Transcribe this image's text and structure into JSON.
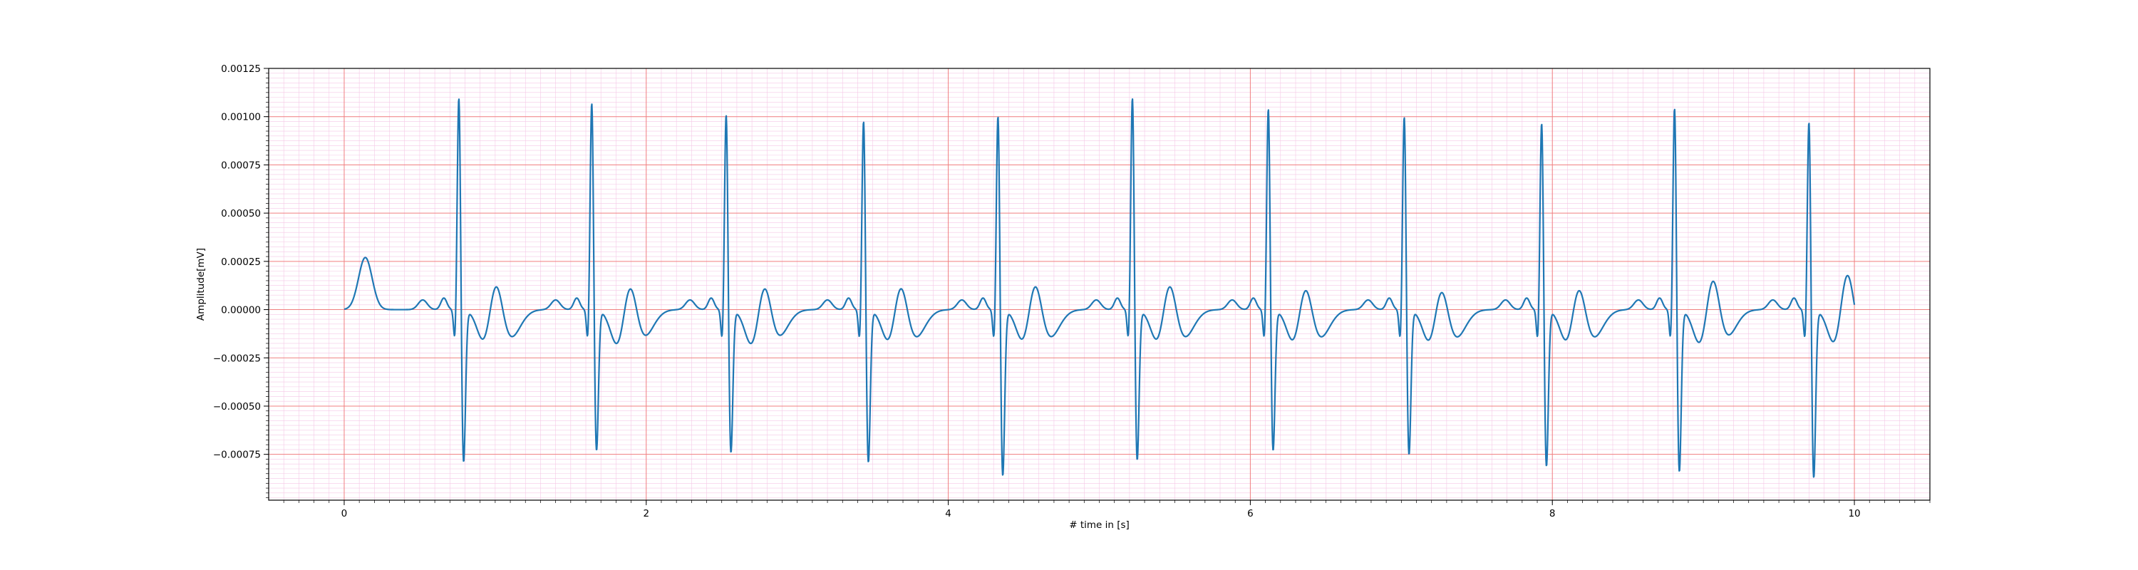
{
  "chart_data": {
    "type": "line",
    "title": "",
    "xlabel": "# time in [s]",
    "ylabel": "Amplitude[mV]",
    "xlim": [
      -0.5,
      10.5
    ],
    "ylim": [
      -0.0009875,
      0.00125
    ],
    "x_ticks": [
      0,
      2,
      4,
      6,
      8,
      10
    ],
    "x_tick_labels": [
      "0",
      "2",
      "4",
      "6",
      "8",
      "10"
    ],
    "y_ticks": [
      0.00125,
      0.001,
      0.00075,
      0.0005,
      0.00025,
      0,
      -0.00025,
      -0.0005,
      -0.00075
    ],
    "y_tick_labels": [
      "0.00125",
      "0.00100",
      "0.00075",
      "0.00050",
      "0.00025",
      "0.00000",
      "−0.00025",
      "−0.00050",
      "−0.00075"
    ],
    "grid": true,
    "colors": {
      "line": "#1f77b4",
      "major_grid": "#f08080",
      "minor_grid": "#f5c8e6",
      "axis": "#000000"
    },
    "series": [
      {
        "beats": [
          {
            "r_time": 0.76,
            "r_peak": 0.00115,
            "s_trough": -0.00081
          },
          {
            "r_time": 1.64,
            "r_peak": 0.00112,
            "s_trough": -0.00075
          },
          {
            "r_time": 2.53,
            "r_peak": 0.00106,
            "s_trough": -0.00076
          },
          {
            "r_time": 3.44,
            "r_peak": 0.00103,
            "s_trough": -0.00081
          },
          {
            "r_time": 4.33,
            "r_peak": 0.00106,
            "s_trough": -0.00088
          },
          {
            "r_time": 5.22,
            "r_peak": 0.00115,
            "s_trough": -0.0008
          },
          {
            "r_time": 6.12,
            "r_peak": 0.00109,
            "s_trough": -0.00075
          },
          {
            "r_time": 7.02,
            "r_peak": 0.00105,
            "s_trough": -0.00077
          },
          {
            "r_time": 7.93,
            "r_peak": 0.00102,
            "s_trough": -0.00083
          },
          {
            "r_time": 8.81,
            "r_peak": 0.0011,
            "s_trough": -0.00086
          },
          {
            "r_time": 9.7,
            "r_peak": 0.00103,
            "s_trough": -0.00089
          }
        ],
        "t_waves": [
          {
            "t_time": 0.14,
            "t_peak": 0.00027
          },
          {
            "t_time": 1.0,
            "t_peak": 0.00029
          },
          {
            "t_time": 1.89,
            "t_peak": 0.00027
          },
          {
            "t_time": 2.78,
            "t_peak": 0.00027
          },
          {
            "t_time": 3.68,
            "t_peak": 0.00028
          },
          {
            "t_time": 4.57,
            "t_peak": 0.00029
          },
          {
            "t_time": 5.46,
            "t_peak": 0.00029
          },
          {
            "t_time": 6.36,
            "t_peak": 0.00027
          },
          {
            "t_time": 7.26,
            "t_peak": 0.00026
          },
          {
            "t_time": 8.17,
            "t_peak": 0.00027
          },
          {
            "t_time": 9.06,
            "t_peak": 0.00031
          },
          {
            "t_time": 9.95,
            "t_peak": 0.00034
          }
        ],
        "x_start": 0,
        "x_end": 10.0,
        "end_value": 8e-05
      }
    ]
  }
}
